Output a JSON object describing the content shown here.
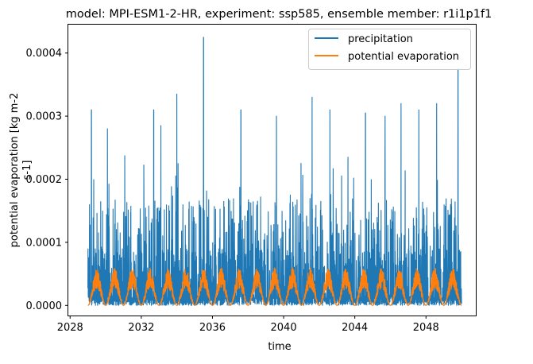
{
  "chart_data": {
    "type": "line",
    "title": "model: MPI-ESM1-2-HR, experiment: ssp585, ensemble member: r1i1p1f1",
    "xlabel": "time",
    "ylabel_lines": [
      "potential evaporation [kg m-2",
      "s-1]"
    ],
    "xlim": [
      2027.9,
      2050.8
    ],
    "ylim": [
      -1.6e-05,
      0.000445
    ],
    "xticks": [
      2028,
      2032,
      2036,
      2040,
      2044,
      2048
    ],
    "xtick_labels": [
      "2028",
      "2032",
      "2036",
      "2040",
      "2044",
      "2048"
    ],
    "yticks": [
      0,
      0.0001,
      0.0002,
      0.0003,
      0.0004
    ],
    "ytick_labels": [
      "0.0000",
      "0.0001",
      "0.0002",
      "0.0003",
      "0.0004"
    ],
    "grid": false,
    "legend_position": "top-right",
    "time_range": [
      2029.0,
      2050.0
    ],
    "series": [
      {
        "name": "precipitation",
        "color": "#1f77b4",
        "kind": "daily noisy series with large spikes",
        "baseline_range": [
          0.0,
          0.0001
        ],
        "notable_peaks": [
          {
            "x": 2029.2,
            "y": 0.00031
          },
          {
            "x": 2030.1,
            "y": 0.00028
          },
          {
            "x": 2032.7,
            "y": 0.00031
          },
          {
            "x": 2033.1,
            "y": 0.000285
          },
          {
            "x": 2034.0,
            "y": 0.000335
          },
          {
            "x": 2035.5,
            "y": 0.000425
          },
          {
            "x": 2037.6,
            "y": 0.00031
          },
          {
            "x": 2039.6,
            "y": 0.0003
          },
          {
            "x": 2041.6,
            "y": 0.00033
          },
          {
            "x": 2042.6,
            "y": 0.00031
          },
          {
            "x": 2044.6,
            "y": 0.000305
          },
          {
            "x": 2045.7,
            "y": 0.0003
          },
          {
            "x": 2046.6,
            "y": 0.00032
          },
          {
            "x": 2047.6,
            "y": 0.00031
          },
          {
            "x": 2048.6,
            "y": 0.00032
          },
          {
            "x": 2049.8,
            "y": 0.000375
          }
        ]
      },
      {
        "name": "potential evaporation",
        "color": "#ff7f0e",
        "kind": "seasonal cycle, one peak per year",
        "seasonal_min": 0.0,
        "seasonal_peak": 6e-05
      }
    ]
  }
}
